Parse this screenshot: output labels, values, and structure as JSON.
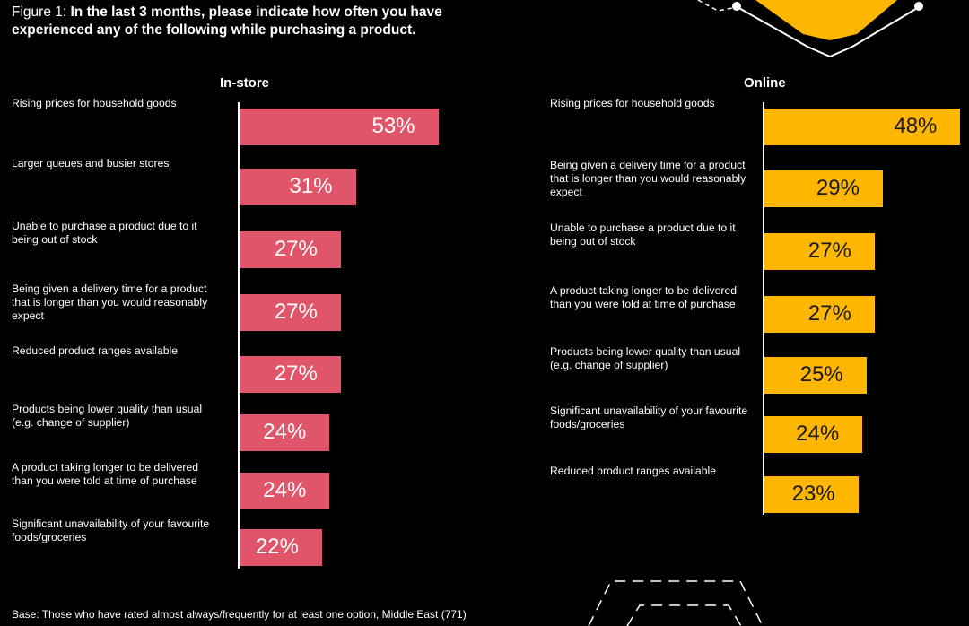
{
  "figure": {
    "title_prefix": "Figure 1: ",
    "title_bold": "In the last 3 months, please indicate how often you have experienced any of the following while purchasing a product.",
    "base_note": "Base: Those who have rated almost always/frequently for at least one option, Middle East (771)"
  },
  "colors": {
    "instore_bar": "#E0556A",
    "online_bar": "#FFB600",
    "background": "#000000"
  },
  "chart_data": [
    {
      "type": "bar",
      "orientation": "horizontal",
      "title": "In-store",
      "categories": [
        "Rising prices for household goods",
        "Larger queues and busier stores",
        "Unable to purchase a product due to it being out of stock",
        "Being given a delivery time for a product that is longer than you would reasonably expect",
        "Reduced product ranges available",
        "Products being lower quality than usual (e.g. change of supplier)",
        "A product taking longer to be delivered than you were told at time of purchase",
        "Significant unavailability of your favourite foods/groceries"
      ],
      "values": [
        53,
        31,
        27,
        27,
        27,
        24,
        24,
        22
      ],
      "value_labels": [
        "53%",
        "31%",
        "27%",
        "27%",
        "27%",
        "24%",
        "24%",
        "22%"
      ],
      "unit": "%"
    },
    {
      "type": "bar",
      "orientation": "horizontal",
      "title": "Online",
      "categories": [
        "Rising prices for household goods",
        "Being given a delivery time for a product that is longer than you would reasonably expect",
        "Unable to purchase a product due to it being out of stock",
        "A product taking longer to be delivered than you were told at time of purchase",
        "Products being lower quality than usual (e.g. change of supplier)",
        "Significant unavailability of your favourite foods/groceries",
        "Reduced product ranges available"
      ],
      "values": [
        48,
        29,
        27,
        27,
        25,
        24,
        23
      ],
      "value_labels": [
        "48%",
        "29%",
        "27%",
        "27%",
        "25%",
        "24%",
        "23%"
      ],
      "unit": "%"
    }
  ]
}
